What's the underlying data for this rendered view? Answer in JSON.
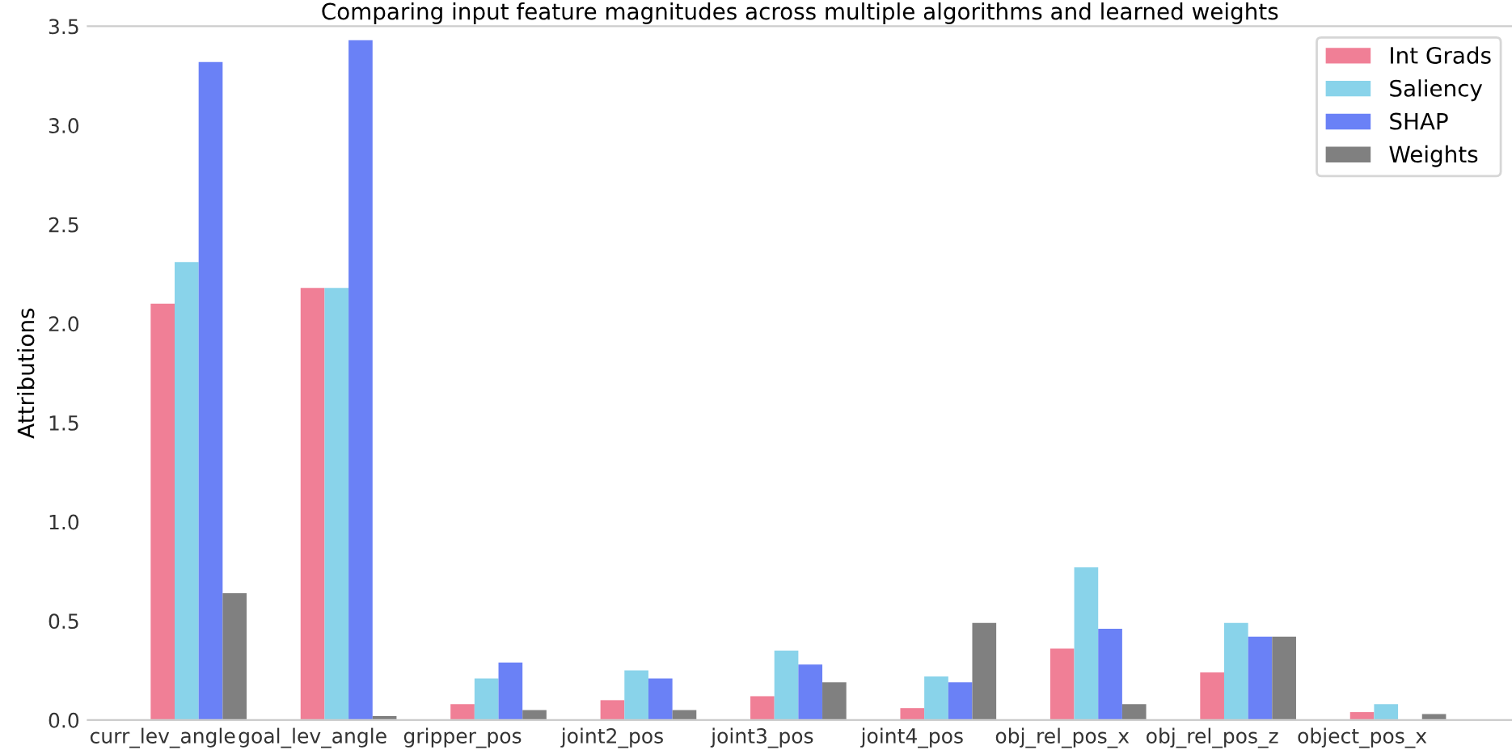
{
  "chart_data": {
    "type": "bar",
    "title": "Comparing input feature magnitudes across multiple algorithms and learned weights",
    "ylabel": "Attributions",
    "categories": [
      "curr_lev_angle",
      "goal_lev_angle",
      "gripper_pos",
      "joint2_pos",
      "joint3_pos",
      "joint4_pos",
      "obj_rel_pos_x",
      "obj_rel_pos_z",
      "object_pos_x"
    ],
    "series": [
      {
        "name": "Int Grads",
        "color": "#f07f96",
        "values": [
          2.1,
          2.18,
          0.08,
          0.1,
          0.12,
          0.06,
          0.36,
          0.24,
          0.04
        ]
      },
      {
        "name": "Saliency",
        "color": "#89d3ea",
        "values": [
          2.31,
          2.18,
          0.21,
          0.25,
          0.35,
          0.22,
          0.77,
          0.49,
          0.08
        ]
      },
      {
        "name": "SHAP",
        "color": "#6a81f6",
        "values": [
          3.32,
          3.43,
          0.29,
          0.21,
          0.28,
          0.19,
          0.46,
          0.42,
          null
        ]
      },
      {
        "name": "Weights",
        "color": "#808080",
        "values": [
          0.64,
          0.02,
          0.05,
          0.05,
          0.19,
          0.49,
          0.08,
          0.42,
          0.03
        ]
      }
    ],
    "ylim": [
      0,
      3.5
    ],
    "yticks": [
      {
        "value": 0,
        "label": "0.0"
      },
      {
        "value": 0.5,
        "label": "0.5"
      },
      {
        "value": 1,
        "label": "1.0"
      },
      {
        "value": 1.5,
        "label": "1.5"
      },
      {
        "value": 2,
        "label": "2.0"
      },
      {
        "value": 2.5,
        "label": "2.5"
      },
      {
        "value": 3,
        "label": "3.0"
      },
      {
        "value": 3.5,
        "label": "3.5"
      }
    ],
    "legend": "top right",
    "grid": false
  }
}
